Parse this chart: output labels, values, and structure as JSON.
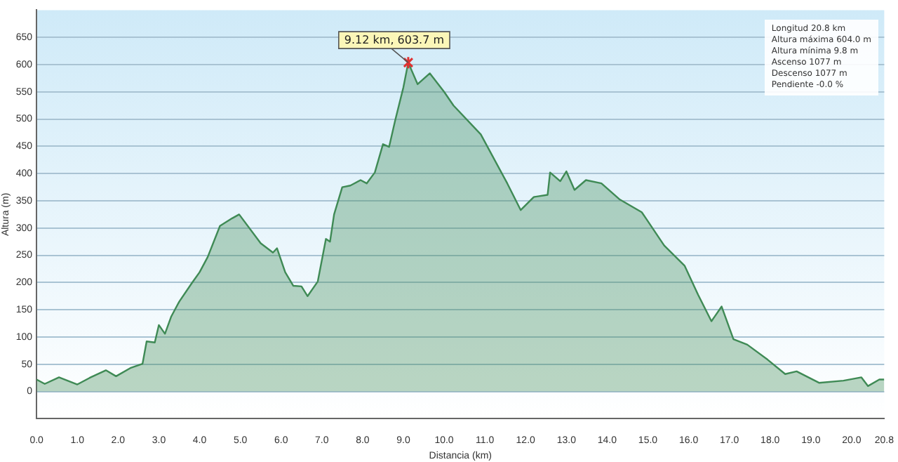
{
  "chart_data": {
    "type": "area",
    "xlabel": "Distancia (km)",
    "ylabel": "Altura (m)",
    "x": [
      0,
      0.2,
      0.55,
      1.0,
      1.3,
      1.7,
      1.95,
      2.3,
      2.6,
      2.7,
      2.9,
      3.0,
      3.15,
      3.3,
      3.5,
      3.8,
      4.0,
      4.2,
      4.5,
      4.8,
      4.97,
      5.5,
      5.8,
      5.9,
      6.1,
      6.3,
      6.5,
      6.65,
      6.9,
      7.1,
      7.2,
      7.3,
      7.5,
      7.7,
      7.95,
      8.1,
      8.3,
      8.5,
      8.65,
      8.8,
      9.0,
      9.12,
      9.35,
      9.65,
      10.0,
      10.23,
      10.9,
      11.55,
      11.88,
      12.2,
      12.54,
      12.6,
      12.85,
      13.0,
      13.2,
      13.48,
      13.86,
      14.3,
      14.85,
      14.96,
      15.4,
      15.9,
      16.23,
      16.56,
      16.81,
      17.1,
      17.44,
      17.93,
      18.37,
      18.65,
      19.2,
      19.8,
      20.24,
      20.4,
      20.68,
      20.8
    ],
    "series": [
      {
        "color": "#3f8a55",
        "values": [
          22,
          14,
          26,
          13,
          25,
          39,
          28,
          43,
          51,
          92,
          90,
          122,
          106,
          137,
          165,
          198,
          219,
          247,
          304,
          318,
          325,
          272,
          255,
          263,
          219,
          194,
          193,
          175,
          202,
          280,
          275,
          325,
          375,
          378,
          388,
          382,
          402,
          454,
          449,
          498,
          558,
          603.7,
          564,
          584,
          550,
          525,
          472,
          382,
          333,
          357,
          361,
          402,
          386,
          404,
          370,
          388,
          382,
          353,
          329,
          317,
          268,
          231,
          178,
          129,
          156,
          96,
          86,
          59,
          32,
          37,
          16,
          20,
          26,
          10,
          22,
          22
        ]
      }
    ],
    "xlim": [
      0,
      20.8
    ],
    "xticks": [
      {
        "value": 0,
        "label": "0.0"
      },
      {
        "value": 1,
        "label": "1.0"
      },
      {
        "value": 2,
        "label": "2.0"
      },
      {
        "value": 3,
        "label": "3.0"
      },
      {
        "value": 4,
        "label": "4.0"
      },
      {
        "value": 5,
        "label": "5.0"
      },
      {
        "value": 6,
        "label": "6.0"
      },
      {
        "value": 7,
        "label": "7.0"
      },
      {
        "value": 8,
        "label": "8.0"
      },
      {
        "value": 9,
        "label": "9.0"
      },
      {
        "value": 10,
        "label": "10.0"
      },
      {
        "value": 11,
        "label": "11.0"
      },
      {
        "value": 12,
        "label": "12.0"
      },
      {
        "value": 13,
        "label": "13.0"
      },
      {
        "value": 14,
        "label": "14.0"
      },
      {
        "value": 15,
        "label": "15.0"
      },
      {
        "value": 16,
        "label": "16.0"
      },
      {
        "value": 17,
        "label": "17.0"
      },
      {
        "value": 18,
        "label": "18.0"
      },
      {
        "value": 19,
        "label": "19.0"
      },
      {
        "value": 20,
        "label": "20.0"
      },
      20.8
    ],
    "ylim": [
      -50,
      700
    ],
    "yticks": [
      0,
      50,
      100,
      150,
      200,
      250,
      300,
      350,
      400,
      450,
      500,
      550,
      600,
      650
    ],
    "grid": "y",
    "legend": false,
    "annotations": [
      {
        "text": "9.12 km, 603.7 m",
        "x": 9.12,
        "y": 603.7
      },
      "Longitud 20.8 km",
      "Altura máxima 604.0 m",
      "Altura mínima 9.8 m",
      "Ascenso 1077 m",
      "Descenso 1077 m",
      "Pendiente -0.0 %"
    ]
  }
}
